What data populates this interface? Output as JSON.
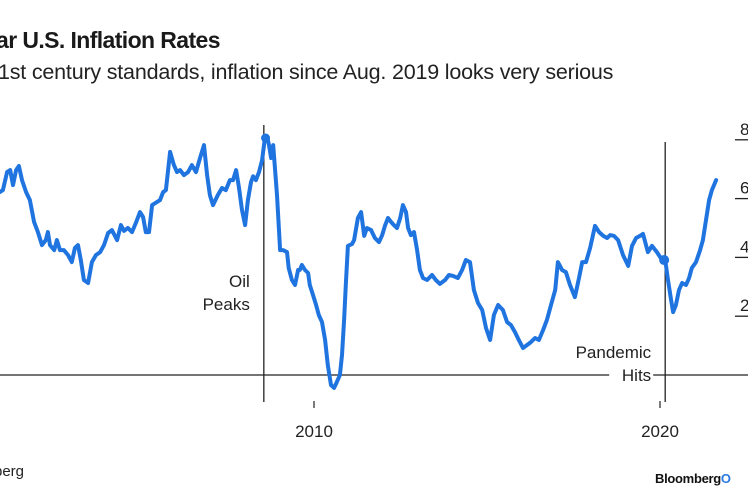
{
  "header": {
    "title": "ar U.S. Inflation Rates",
    "subtitle": "1st century standards, inflation since Aug. 2019 looks very serious"
  },
  "footer": {
    "source": "berg",
    "brand": "Bloomberg",
    "brand_accent": "O"
  },
  "colors": {
    "line": "#1f74e0",
    "axis": "#222222",
    "text": "#1a1a1a"
  },
  "chart_data": {
    "type": "line",
    "title": "ar U.S. Inflation Rates",
    "subtitle": "1st century standards, inflation since Aug. 2019 looks very serious",
    "xlabel": "",
    "ylabel": "",
    "xlim": [
      2000.92,
      2022.5
    ],
    "ylim": [
      0,
      8
    ],
    "x_ticks": [
      2010,
      2020
    ],
    "x_tick_labels": [
      "2010",
      "2020"
    ],
    "y_ticks": [
      0,
      2,
      4,
      6,
      8
    ],
    "y_tick_labels": [
      "",
      "2",
      "4",
      "6",
      "8"
    ],
    "y_axis_side": "right",
    "grid": false,
    "legend": "none",
    "annotations": [
      {
        "label_lines": [
          "Oil",
          "Peaks"
        ],
        "x": 2008.55,
        "type": "vline"
      },
      {
        "label_lines": [
          "Pandemic",
          "Hits"
        ],
        "x": 2020.15,
        "type": "vline",
        "marker": {
          "x": 2020.12,
          "y": 3.91
        }
      }
    ],
    "series": [
      {
        "name": "Inflation rate",
        "points": [
          [
            2000.92,
            6.22
          ],
          [
            2001.01,
            6.29
          ],
          [
            2001.13,
            6.9
          ],
          [
            2001.22,
            6.97
          ],
          [
            2001.3,
            6.46
          ],
          [
            2001.39,
            6.97
          ],
          [
            2001.47,
            7.11
          ],
          [
            2001.56,
            6.63
          ],
          [
            2001.68,
            6.22
          ],
          [
            2001.79,
            5.95
          ],
          [
            2001.91,
            5.2
          ],
          [
            2002.02,
            4.86
          ],
          [
            2002.14,
            4.42
          ],
          [
            2002.25,
            4.59
          ],
          [
            2002.31,
            4.86
          ],
          [
            2002.37,
            4.42
          ],
          [
            2002.49,
            4.25
          ],
          [
            2002.57,
            4.59
          ],
          [
            2002.66,
            4.25
          ],
          [
            2002.77,
            4.25
          ],
          [
            2002.89,
            4.08
          ],
          [
            2003.0,
            3.84
          ],
          [
            2003.09,
            4.32
          ],
          [
            2003.18,
            4.42
          ],
          [
            2003.26,
            3.91
          ],
          [
            2003.35,
            3.23
          ],
          [
            2003.47,
            3.13
          ],
          [
            2003.58,
            3.84
          ],
          [
            2003.7,
            4.08
          ],
          [
            2003.82,
            4.18
          ],
          [
            2003.93,
            4.42
          ],
          [
            2004.05,
            4.83
          ],
          [
            2004.16,
            4.93
          ],
          [
            2004.31,
            4.59
          ],
          [
            2004.42,
            5.1
          ],
          [
            2004.51,
            4.9
          ],
          [
            2004.62,
            5.0
          ],
          [
            2004.74,
            4.86
          ],
          [
            2004.86,
            5.2
          ],
          [
            2004.97,
            5.54
          ],
          [
            2005.06,
            5.37
          ],
          [
            2005.14,
            4.86
          ],
          [
            2005.23,
            4.86
          ],
          [
            2005.32,
            5.78
          ],
          [
            2005.46,
            5.88
          ],
          [
            2005.55,
            5.95
          ],
          [
            2005.64,
            6.22
          ],
          [
            2005.72,
            6.29
          ],
          [
            2005.84,
            7.59
          ],
          [
            2005.95,
            7.14
          ],
          [
            2006.04,
            6.9
          ],
          [
            2006.13,
            6.97
          ],
          [
            2006.24,
            6.8
          ],
          [
            2006.36,
            6.9
          ],
          [
            2006.47,
            7.14
          ],
          [
            2006.59,
            6.9
          ],
          [
            2006.71,
            7.4
          ],
          [
            2006.82,
            7.82
          ],
          [
            2006.91,
            6.8
          ],
          [
            2006.99,
            6.12
          ],
          [
            2007.08,
            5.78
          ],
          [
            2007.22,
            6.12
          ],
          [
            2007.34,
            6.36
          ],
          [
            2007.45,
            6.29
          ],
          [
            2007.57,
            6.63
          ],
          [
            2007.66,
            6.63
          ],
          [
            2007.75,
            6.97
          ],
          [
            2007.83,
            6.39
          ],
          [
            2007.92,
            5.61
          ],
          [
            2008.01,
            5.1
          ],
          [
            2008.09,
            5.95
          ],
          [
            2008.18,
            6.56
          ],
          [
            2008.24,
            6.76
          ],
          [
            2008.32,
            6.63
          ],
          [
            2008.41,
            6.9
          ],
          [
            2008.5,
            7.31
          ],
          [
            2008.58,
            8.06
          ],
          [
            2008.64,
            8.13
          ],
          [
            2008.7,
            7.82
          ],
          [
            2008.76,
            7.38
          ],
          [
            2008.82,
            7.82
          ],
          [
            2008.93,
            6.12
          ],
          [
            2009.02,
            4.25
          ],
          [
            2009.1,
            4.25
          ],
          [
            2009.22,
            4.18
          ],
          [
            2009.27,
            3.64
          ],
          [
            2009.36,
            3.23
          ],
          [
            2009.45,
            3.06
          ],
          [
            2009.54,
            3.57
          ],
          [
            2009.59,
            3.57
          ],
          [
            2009.65,
            3.74
          ],
          [
            2009.74,
            3.57
          ],
          [
            2009.83,
            3.47
          ],
          [
            2009.88,
            3.06
          ],
          [
            2009.97,
            2.72
          ],
          [
            2010.06,
            2.38
          ],
          [
            2010.14,
            2.04
          ],
          [
            2010.23,
            1.8
          ],
          [
            2010.32,
            1.19
          ],
          [
            2010.4,
            0.34
          ],
          [
            2010.49,
            -0.34
          ],
          [
            2010.58,
            -0.44
          ],
          [
            2010.66,
            -0.24
          ],
          [
            2010.75,
            0.0
          ],
          [
            2010.81,
            0.68
          ],
          [
            2010.87,
            1.87
          ],
          [
            2010.92,
            3.06
          ],
          [
            2010.98,
            4.39
          ],
          [
            2011.1,
            4.46
          ],
          [
            2011.16,
            4.59
          ],
          [
            2011.27,
            5.34
          ],
          [
            2011.36,
            5.54
          ],
          [
            2011.45,
            4.73
          ],
          [
            2011.53,
            5.0
          ],
          [
            2011.65,
            4.93
          ],
          [
            2011.76,
            4.66
          ],
          [
            2011.88,
            4.52
          ],
          [
            2011.97,
            4.76
          ],
          [
            2012.05,
            5.07
          ],
          [
            2012.14,
            5.34
          ],
          [
            2012.23,
            5.2
          ],
          [
            2012.31,
            5.1
          ],
          [
            2012.4,
            5.0
          ],
          [
            2012.49,
            5.34
          ],
          [
            2012.57,
            5.78
          ],
          [
            2012.66,
            5.54
          ],
          [
            2012.72,
            5.0
          ],
          [
            2012.8,
            4.76
          ],
          [
            2012.89,
            4.86
          ],
          [
            2012.98,
            4.25
          ],
          [
            2013.06,
            3.57
          ],
          [
            2013.15,
            3.3
          ],
          [
            2013.27,
            3.23
          ],
          [
            2013.41,
            3.4
          ],
          [
            2013.52,
            3.23
          ],
          [
            2013.64,
            3.1
          ],
          [
            2013.79,
            3.23
          ],
          [
            2013.9,
            3.4
          ],
          [
            2014.02,
            3.37
          ],
          [
            2014.16,
            3.3
          ],
          [
            2014.28,
            3.57
          ],
          [
            2014.39,
            3.91
          ],
          [
            2014.51,
            3.84
          ],
          [
            2014.62,
            2.89
          ],
          [
            2014.74,
            2.45
          ],
          [
            2014.86,
            2.21
          ],
          [
            2014.97,
            1.6
          ],
          [
            2015.09,
            1.19
          ],
          [
            2015.2,
            2.04
          ],
          [
            2015.32,
            2.38
          ],
          [
            2015.46,
            2.21
          ],
          [
            2015.58,
            1.8
          ],
          [
            2015.69,
            1.7
          ],
          [
            2015.81,
            1.46
          ],
          [
            2015.92,
            1.19
          ],
          [
            2016.04,
            0.92
          ],
          [
            2016.16,
            1.02
          ],
          [
            2016.27,
            1.12
          ],
          [
            2016.39,
            1.26
          ],
          [
            2016.5,
            1.19
          ],
          [
            2016.62,
            1.53
          ],
          [
            2016.73,
            1.87
          ],
          [
            2016.85,
            2.38
          ],
          [
            2016.97,
            2.89
          ],
          [
            2017.05,
            3.84
          ],
          [
            2017.17,
            3.57
          ],
          [
            2017.28,
            3.5
          ],
          [
            2017.4,
            3.06
          ],
          [
            2017.54,
            2.65
          ],
          [
            2017.66,
            3.3
          ],
          [
            2017.75,
            3.84
          ],
          [
            2017.86,
            3.84
          ],
          [
            2017.98,
            4.32
          ],
          [
            2018.12,
            5.07
          ],
          [
            2018.24,
            4.86
          ],
          [
            2018.36,
            4.73
          ],
          [
            2018.47,
            4.66
          ],
          [
            2018.56,
            4.76
          ],
          [
            2018.67,
            4.73
          ],
          [
            2018.79,
            4.59
          ],
          [
            2018.93,
            4.08
          ],
          [
            2019.08,
            3.71
          ],
          [
            2019.19,
            4.39
          ],
          [
            2019.31,
            4.66
          ],
          [
            2019.42,
            4.73
          ],
          [
            2019.51,
            4.8
          ],
          [
            2019.65,
            4.18
          ],
          [
            2019.77,
            4.39
          ],
          [
            2019.91,
            4.18
          ],
          [
            2020.06,
            3.91
          ],
          [
            2020.12,
            3.91
          ],
          [
            2020.17,
            3.74
          ],
          [
            2020.23,
            3.23
          ],
          [
            2020.32,
            2.55
          ],
          [
            2020.38,
            2.14
          ],
          [
            2020.46,
            2.38
          ],
          [
            2020.55,
            2.89
          ],
          [
            2020.64,
            3.13
          ],
          [
            2020.75,
            3.06
          ],
          [
            2020.84,
            3.3
          ],
          [
            2020.92,
            3.64
          ],
          [
            2021.04,
            3.84
          ],
          [
            2021.16,
            4.25
          ],
          [
            2021.24,
            4.59
          ],
          [
            2021.33,
            5.27
          ],
          [
            2021.42,
            5.95
          ],
          [
            2021.5,
            6.29
          ],
          [
            2021.62,
            6.63
          ]
        ]
      }
    ]
  }
}
